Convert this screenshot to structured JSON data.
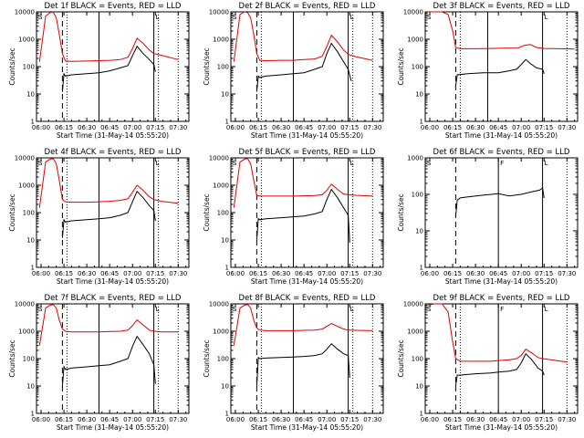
{
  "chart_data": [
    {
      "type": "line",
      "title": "Det 1f BLACK = Events, RED = LLD",
      "xlabel": "Start Time (31-May-14 05:55:20)",
      "ylabel": "Counts/sec",
      "yscale": "log",
      "ylim": [
        1,
        10000
      ],
      "xlim_minutes": [
        -3,
        97
      ],
      "x_tick_labels": [
        "06:00",
        "06:15",
        "06:30",
        "06:45",
        "07:00",
        "07:15",
        "07:30"
      ],
      "y_tick_labels": [
        "1",
        "10",
        "100",
        "1000",
        "10000"
      ],
      "corner_markers": [
        "S",
        "L"
      ],
      "vertical_lines": {
        "dashed": [
          14
        ],
        "dotted": [
          17,
          77,
          90
        ],
        "solid": [
          38,
          74
        ]
      },
      "series": [
        {
          "name": "Events",
          "color": "#000000",
          "x": [
            14,
            15,
            16,
            20,
            30,
            38,
            45,
            52,
            57,
            60,
            63,
            67,
            71,
            74,
            75
          ],
          "y": [
            12,
            55,
            45,
            50,
            55,
            60,
            70,
            90,
            110,
            250,
            550,
            300,
            180,
            120,
            65
          ]
        },
        {
          "name": "LLD",
          "color": "#e00000",
          "x": [
            -1,
            3,
            6,
            8,
            10,
            12,
            14,
            16,
            20,
            30,
            38,
            45,
            52,
            57,
            60,
            63,
            67,
            71,
            74,
            79,
            90
          ],
          "y": [
            150,
            7000,
            9500,
            9800,
            6000,
            1500,
            300,
            160,
            155,
            160,
            165,
            170,
            180,
            220,
            450,
            1100,
            700,
            400,
            300,
            260,
            180
          ]
        }
      ]
    },
    {
      "type": "line",
      "title": "Det 2f BLACK = Events, RED = LLD",
      "xlabel": "Start Time (31-May-14 05:55:20)",
      "ylabel": "Counts/sec",
      "yscale": "log",
      "ylim": [
        1,
        10000
      ],
      "xlim_minutes": [
        -3,
        97
      ],
      "x_tick_labels": [
        "06:00",
        "06:15",
        "06:30",
        "06:45",
        "07:00",
        "07:15",
        "07:30"
      ],
      "y_tick_labels": [
        "1",
        "10",
        "100",
        "1000",
        "10000"
      ],
      "corner_markers": [
        "S",
        "L"
      ],
      "vertical_lines": {
        "dashed": [
          14
        ],
        "dotted": [
          17,
          77,
          90
        ],
        "solid": [
          38,
          74
        ]
      },
      "series": [
        {
          "name": "Events",
          "color": "#000000",
          "x": [
            14,
            15,
            16,
            20,
            30,
            38,
            45,
            52,
            57,
            60,
            63,
            67,
            71,
            74,
            76
          ],
          "y": [
            12,
            45,
            40,
            45,
            50,
            55,
            60,
            80,
            100,
            300,
            700,
            350,
            150,
            80,
            30
          ]
        },
        {
          "name": "LLD",
          "color": "#e00000",
          "x": [
            -1,
            3,
            6,
            8,
            10,
            12,
            14,
            16,
            20,
            30,
            38,
            45,
            52,
            57,
            60,
            63,
            67,
            71,
            74,
            79,
            90
          ],
          "y": [
            150,
            8000,
            10000,
            9500,
            6000,
            1500,
            300,
            170,
            165,
            170,
            170,
            180,
            190,
            240,
            550,
            1400,
            800,
            400,
            280,
            230,
            170
          ]
        }
      ]
    },
    {
      "type": "line",
      "title": "Det 3f BLACK = Events, RED = LLD",
      "xlabel": "Start Time (31-May-14 05:55:20)",
      "ylabel": "Counts/sec",
      "yscale": "log",
      "ylim": [
        1,
        10000
      ],
      "xlim_minutes": [
        -3,
        97
      ],
      "x_tick_labels": [
        "06:00",
        "06:15",
        "06:30",
        "06:45",
        "07:00",
        "07:15",
        "07:30"
      ],
      "y_tick_labels": [
        "1",
        "10",
        "100",
        "1000",
        "10000"
      ],
      "corner_markers": [
        "S",
        "L"
      ],
      "vertical_lines": {
        "dashed": [
          17
        ],
        "dotted": [
          20,
          90
        ],
        "solid": [
          38,
          74
        ]
      },
      "series": [
        {
          "name": "Events",
          "color": "#000000",
          "x": [
            17,
            18,
            25,
            35,
            45,
            52,
            57,
            60,
            63,
            66,
            70,
            74,
            75
          ],
          "y": [
            20,
            50,
            55,
            60,
            60,
            70,
            80,
            120,
            180,
            130,
            90,
            80,
            55
          ]
        },
        {
          "name": "LLD",
          "color": "#e00000",
          "x": [
            -1,
            2,
            8,
            12,
            15,
            17,
            20,
            30,
            40,
            50,
            58,
            62,
            66,
            70,
            75,
            85,
            95
          ],
          "y": [
            10000,
            10000,
            10000,
            8000,
            2000,
            500,
            450,
            450,
            460,
            470,
            480,
            600,
            640,
            500,
            460,
            450,
            440
          ]
        }
      ]
    },
    {
      "type": "line",
      "title": "Det 4f BLACK = Events, RED = LLD",
      "xlabel": "Start Time (31-May-14 05:55:20)",
      "ylabel": "Counts/sec",
      "yscale": "log",
      "ylim": [
        1,
        10000
      ],
      "xlim_minutes": [
        -3,
        97
      ],
      "x_tick_labels": [
        "06:00",
        "06:15",
        "06:30",
        "06:45",
        "07:00",
        "07:15",
        "07:30"
      ],
      "y_tick_labels": [
        "1",
        "10",
        "100",
        "1000",
        "10000"
      ],
      "corner_markers": [
        "S",
        "L"
      ],
      "vertical_lines": {
        "dashed": [
          14
        ],
        "dotted": [
          17,
          77,
          90
        ],
        "solid": [
          38,
          74
        ]
      },
      "series": [
        {
          "name": "Events",
          "color": "#000000",
          "x": [
            14,
            15,
            16,
            20,
            30,
            38,
            45,
            52,
            57,
            60,
            63,
            67,
            71,
            74,
            75
          ],
          "y": [
            12,
            55,
            45,
            50,
            55,
            60,
            65,
            80,
            100,
            250,
            600,
            350,
            180,
            120,
            50
          ]
        },
        {
          "name": "LLD",
          "color": "#e00000",
          "x": [
            -1,
            3,
            6,
            8,
            10,
            12,
            14,
            16,
            20,
            30,
            38,
            45,
            52,
            57,
            60,
            63,
            67,
            71,
            74,
            79,
            90
          ],
          "y": [
            150,
            7000,
            9000,
            9500,
            6000,
            1500,
            300,
            250,
            240,
            240,
            250,
            260,
            280,
            320,
            550,
            1000,
            650,
            380,
            300,
            260,
            220
          ]
        }
      ]
    },
    {
      "type": "line",
      "title": "Det 5f BLACK = Events, RED = LLD",
      "xlabel": "Start Time (31-May-14 05:55:20)",
      "ylabel": "Counts/sec",
      "yscale": "log",
      "ylim": [
        1,
        10000
      ],
      "xlim_minutes": [
        -3,
        97
      ],
      "x_tick_labels": [
        "06:00",
        "06:15",
        "06:30",
        "06:45",
        "07:00",
        "07:15",
        "07:30"
      ],
      "y_tick_labels": [
        "1",
        "10",
        "100",
        "1000",
        "10000"
      ],
      "corner_markers": [
        "S",
        "L"
      ],
      "vertical_lines": {
        "dashed": [
          14
        ],
        "dotted": [
          17,
          77,
          90
        ],
        "solid": [
          38,
          74
        ]
      },
      "series": [
        {
          "name": "Events",
          "color": "#000000",
          "x": [
            14,
            15,
            16,
            20,
            30,
            38,
            45,
            52,
            57,
            60,
            63,
            67,
            71,
            74,
            75
          ],
          "y": [
            10,
            60,
            55,
            60,
            65,
            70,
            75,
            90,
            110,
            300,
            700,
            350,
            150,
            80,
            8
          ]
        },
        {
          "name": "LLD",
          "color": "#e00000",
          "x": [
            -1,
            3,
            6,
            8,
            10,
            12,
            14,
            16,
            20,
            30,
            38,
            45,
            52,
            57,
            60,
            63,
            67,
            71,
            74,
            79,
            90
          ],
          "y": [
            150,
            7000,
            9000,
            9500,
            6000,
            1500,
            420,
            400,
            400,
            400,
            400,
            410,
            420,
            450,
            650,
            1100,
            700,
            480,
            450,
            430,
            400
          ]
        }
      ]
    },
    {
      "type": "line",
      "title": "Det 6f BLACK = Events, RED = LLD",
      "xlabel": "Start Time (31-May-14 05:55:20)",
      "ylabel": "Counts/sec",
      "yscale": "log",
      "ylim": [
        1,
        1000
      ],
      "xlim_minutes": [
        -3,
        97
      ],
      "x_tick_labels": [
        "06:00",
        "06:15",
        "06:30",
        "06:45",
        "07:00",
        "07:15",
        "07:30"
      ],
      "y_tick_labels": [
        "1",
        "10",
        "100",
        "1000"
      ],
      "corner_markers": [
        "S",
        "F",
        "L"
      ],
      "vertical_lines": {
        "dashed": [
          17
        ],
        "dotted": [
          90
        ],
        "solid": [
          45,
          74
        ]
      },
      "series": [
        {
          "name": "Events",
          "color": "#000000",
          "x": [
            17,
            18,
            20,
            25,
            35,
            45,
            52,
            60,
            68,
            72,
            74,
            75
          ],
          "y": [
            25,
            70,
            80,
            85,
            95,
            105,
            90,
            100,
            120,
            130,
            150,
            80
          ]
        }
      ]
    },
    {
      "type": "line",
      "title": "Det 7f BLACK = Events, RED = LLD",
      "xlabel": "Start Time (31-May-14 05:55:20)",
      "ylabel": "Counts/sec",
      "yscale": "log",
      "ylim": [
        1,
        10000
      ],
      "xlim_minutes": [
        -3,
        97
      ],
      "x_tick_labels": [
        "06:00",
        "06:15",
        "06:30",
        "06:45",
        "07:00",
        "07:15",
        "07:30"
      ],
      "y_tick_labels": [
        "1",
        "10",
        "100",
        "1000",
        "10000"
      ],
      "corner_markers": [
        "S",
        "L"
      ],
      "vertical_lines": {
        "dashed": [
          14
        ],
        "dotted": [
          17,
          77,
          90
        ],
        "solid": [
          38,
          74
        ]
      },
      "series": [
        {
          "name": "Events",
          "color": "#000000",
          "x": [
            14,
            15,
            16,
            20,
            30,
            38,
            45,
            52,
            57,
            60,
            63,
            67,
            71,
            74,
            75
          ],
          "y": [
            10,
            50,
            40,
            45,
            50,
            55,
            60,
            80,
            100,
            280,
            650,
            320,
            150,
            60,
            12
          ]
        },
        {
          "name": "LLD",
          "color": "#e00000",
          "x": [
            -1,
            3,
            6,
            8,
            10,
            12,
            14,
            16,
            20,
            30,
            38,
            45,
            52,
            57,
            60,
            63,
            67,
            71,
            74,
            79,
            90
          ],
          "y": [
            300,
            7000,
            9000,
            9500,
            7000,
            2500,
            1200,
            1000,
            950,
            950,
            950,
            980,
            1000,
            1100,
            1600,
            2600,
            1700,
            1100,
            1000,
            950,
            950
          ]
        }
      ]
    },
    {
      "type": "line",
      "title": "Det 8f BLACK = Events, RED = LLD",
      "xlabel": "Start Time (31-May-14 05:55:20)",
      "ylabel": "Counts/sec",
      "yscale": "log",
      "ylim": [
        1,
        10000
      ],
      "xlim_minutes": [
        -3,
        97
      ],
      "x_tick_labels": [
        "06:00",
        "06:15",
        "06:30",
        "06:45",
        "07:00",
        "07:15",
        "07:30"
      ],
      "y_tick_labels": [
        "1",
        "10",
        "100",
        "1000",
        "10000"
      ],
      "corner_markers": [
        "S",
        "L"
      ],
      "vertical_lines": {
        "dashed": [
          14
        ],
        "dotted": [
          17,
          77,
          90
        ],
        "solid": [
          38,
          74
        ]
      },
      "series": [
        {
          "name": "Events",
          "color": "#000000",
          "x": [
            14,
            15,
            16,
            20,
            30,
            38,
            45,
            52,
            57,
            60,
            63,
            67,
            71,
            74,
            75
          ],
          "y": [
            10,
            110,
            100,
            105,
            110,
            115,
            120,
            130,
            150,
            220,
            350,
            220,
            150,
            130,
            20
          ]
        },
        {
          "name": "LLD",
          "color": "#e00000",
          "x": [
            -1,
            3,
            6,
            8,
            10,
            12,
            14,
            16,
            20,
            30,
            38,
            45,
            52,
            57,
            60,
            63,
            67,
            71,
            74,
            79,
            90
          ],
          "y": [
            300,
            7000,
            9000,
            9500,
            7000,
            2500,
            1300,
            1100,
            1050,
            1050,
            1050,
            1080,
            1100,
            1200,
            1500,
            1900,
            1500,
            1200,
            1100,
            1080,
            1050
          ]
        }
      ]
    },
    {
      "type": "line",
      "title": "Det 9f BLACK = Events, RED = LLD",
      "xlabel": "Start Time (31-May-14 05:55:20)",
      "ylabel": "Counts/sec",
      "yscale": "log",
      "ylim": [
        1,
        10000
      ],
      "xlim_minutes": [
        -3,
        97
      ],
      "x_tick_labels": [
        "06:00",
        "06:15",
        "06:30",
        "06:45",
        "07:00",
        "07:15",
        "07:30"
      ],
      "y_tick_labels": [
        "1",
        "10",
        "100",
        "1000",
        "10000"
      ],
      "corner_markers": [
        "S",
        "F",
        "L"
      ],
      "vertical_lines": {
        "dashed": [
          17
        ],
        "dotted": [
          20,
          90
        ],
        "solid": [
          45,
          74
        ]
      },
      "series": [
        {
          "name": "Events",
          "color": "#000000",
          "x": [
            17,
            18,
            20,
            30,
            40,
            45,
            52,
            57,
            60,
            63,
            67,
            71,
            74,
            75
          ],
          "y": [
            10,
            25,
            25,
            28,
            30,
            32,
            35,
            40,
            70,
            150,
            90,
            45,
            35,
            25
          ]
        },
        {
          "name": "LLD",
          "color": "#e00000",
          "x": [
            -1,
            3,
            8,
            12,
            15,
            17,
            20,
            30,
            40,
            45,
            52,
            57,
            60,
            63,
            67,
            71,
            74,
            80,
            90
          ],
          "y": [
            9000,
            10000,
            10000,
            5000,
            400,
            100,
            80,
            80,
            80,
            85,
            90,
            100,
            130,
            220,
            160,
            110,
            100,
            90,
            75
          ]
        }
      ]
    }
  ]
}
